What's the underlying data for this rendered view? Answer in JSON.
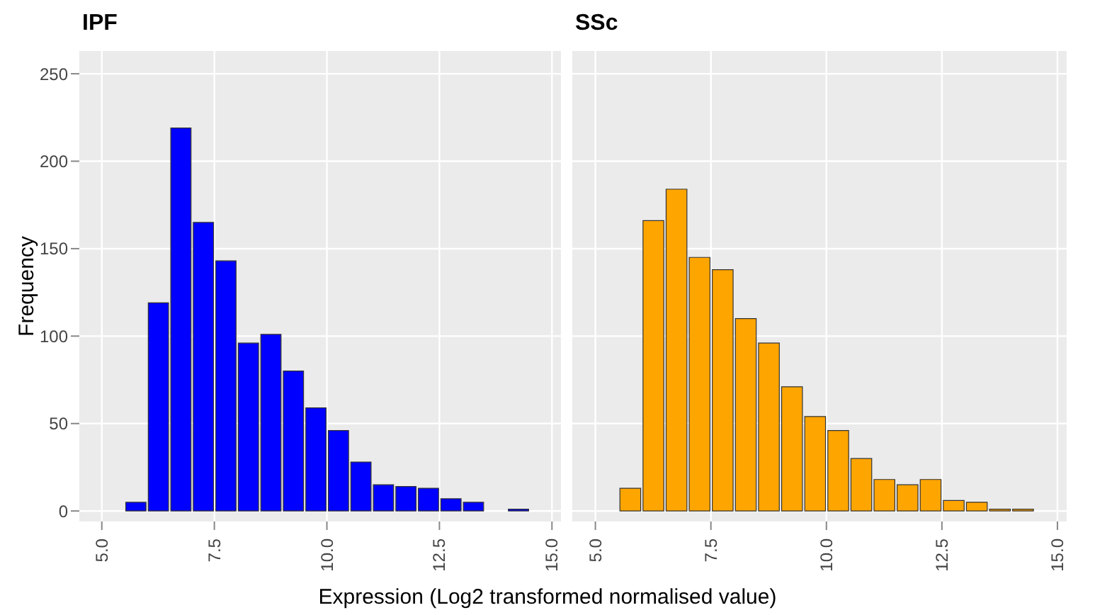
{
  "chart_data": [
    {
      "type": "histogram",
      "title": "IPF",
      "xlabel": "Expression (Log2 transformed normalised value)",
      "ylabel": "Frequency",
      "color": "#0000ff",
      "bins": [
        5,
        5.5,
        6,
        6.5,
        7,
        7.5,
        8,
        8.5,
        9,
        9.5,
        10,
        10.5,
        11,
        11.5,
        12,
        12.5,
        13,
        13.5,
        14,
        14.5,
        15
      ],
      "values": [
        0,
        5,
        119,
        219,
        165,
        143,
        96,
        101,
        80,
        59,
        46,
        28,
        15,
        14,
        13,
        7,
        5,
        0,
        1,
        0
      ],
      "xlim": [
        4.5,
        15.2
      ],
      "xticks": [
        {
          "value": 5,
          "label": "5.0"
        },
        {
          "value": 7.5,
          "label": "7.5"
        },
        {
          "value": 10,
          "label": "10.0"
        },
        {
          "value": 12.5,
          "label": "12.5"
        },
        {
          "value": 15,
          "label": "15.0"
        }
      ],
      "ylim": [
        -6,
        263
      ],
      "yticks": [
        0,
        50,
        100,
        150,
        200,
        250
      ],
      "grid": true
    },
    {
      "type": "histogram",
      "title": "SSc",
      "color": "#ffa500",
      "bins": [
        5,
        5.5,
        6,
        6.5,
        7,
        7.5,
        8,
        8.5,
        9,
        9.5,
        10,
        10.5,
        11,
        11.5,
        12,
        12.5,
        13,
        13.5,
        14,
        14.5,
        15
      ],
      "values": [
        0,
        13,
        166,
        184,
        145,
        138,
        110,
        96,
        71,
        54,
        46,
        30,
        18,
        15,
        18,
        6,
        5,
        1,
        1,
        0
      ],
      "xlim": [
        4.5,
        15.2
      ],
      "xticks": [
        {
          "value": 5,
          "label": "5.0"
        },
        {
          "value": 7.5,
          "label": "7.5"
        },
        {
          "value": 10,
          "label": "10.0"
        },
        {
          "value": 12.5,
          "label": "12.5"
        },
        {
          "value": 15,
          "label": "15.0"
        }
      ],
      "ylim": [
        -6,
        263
      ],
      "yticks": [
        0,
        50,
        100,
        150,
        200,
        250
      ],
      "grid": true,
      "tick_labels": "x"
    }
  ]
}
